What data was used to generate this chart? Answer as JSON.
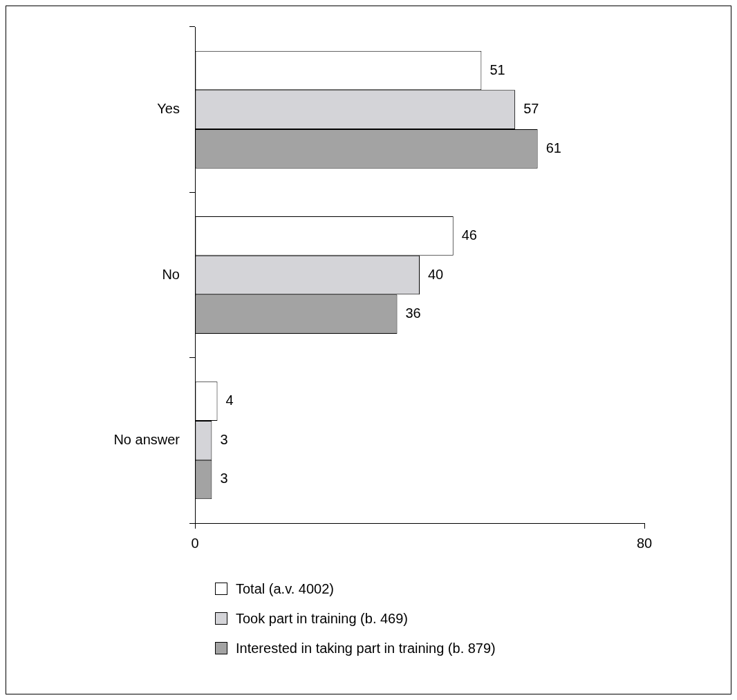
{
  "chart_data": {
    "type": "bar",
    "orientation": "horizontal",
    "categories": [
      "Yes",
      "No",
      "No answer"
    ],
    "series": [
      {
        "name": "Total (a.v. 4002)",
        "color": "#ffffff",
        "values": [
          51,
          46,
          4
        ]
      },
      {
        "name": "Took part in training (b. 469)",
        "color": "#d4d4d8",
        "values": [
          57,
          40,
          3
        ]
      },
      {
        "name": "Interested in taking part in training (b. 879)",
        "color": "#a3a3a3",
        "values": [
          61,
          36,
          3
        ]
      }
    ],
    "xlim": [
      0,
      80
    ],
    "xticks": [
      0,
      80
    ],
    "grid": false,
    "legend": "bottom",
    "data_labels": true
  }
}
